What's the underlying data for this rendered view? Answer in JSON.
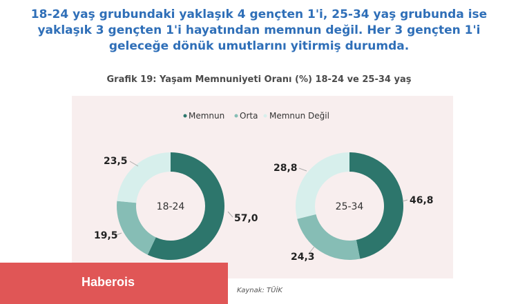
{
  "headline": {
    "line1": "18-24 yaş grubundaki yaklaşık 4 gençten 1'i, 25-34 yaş grubunda ise",
    "line2": "yaklaşık 3 gençten 1'i hayatından memnun değil. Her 3 gençten 1'i",
    "line3": "geleceğe dönük umutlarını yitirmiş durumda."
  },
  "source": "Kaynak: TÜİK",
  "brand": "Haberois",
  "colors": {
    "memnun": "#2d766c",
    "orta": "#86bdb5",
    "memnun_degil": "#d7efec",
    "panel": "#f8eeee",
    "headline": "#2f6fb8",
    "brand": "#e05656"
  },
  "chart_data": {
    "type": "donut",
    "title": "Grafik 19: Yaşam Memnuniyeti Oranı (%) 18-24 ve 25-34 yaş",
    "legend_position": "top-center",
    "series_names": [
      "Memnun",
      "Orta",
      "Memnun Değil"
    ],
    "charts": [
      {
        "label": "18-24",
        "slices": [
          {
            "name": "Memnun",
            "value": 57.0,
            "label": "57,0"
          },
          {
            "name": "Orta",
            "value": 19.5,
            "label": "19,5"
          },
          {
            "name": "Memnun Değil",
            "value": 23.5,
            "label": "23,5"
          }
        ]
      },
      {
        "label": "25-34",
        "slices": [
          {
            "name": "Memnun",
            "value": 46.8,
            "label": "46,8"
          },
          {
            "name": "Orta",
            "value": 24.3,
            "label": "24,3"
          },
          {
            "name": "Memnun Değil",
            "value": 28.8,
            "label": "28,8"
          }
        ]
      }
    ]
  }
}
